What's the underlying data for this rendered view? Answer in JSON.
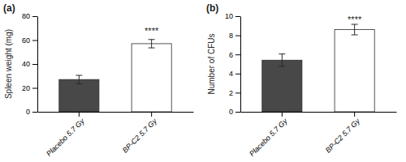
{
  "chart_data": [
    {
      "type": "bar",
      "title": "(a)",
      "categories": [
        "Placebo 5.7 Gy",
        "BP-C2 5.7 Gy"
      ],
      "values": [
        27.0,
        57.0
      ],
      "errors": [
        3.5,
        3.5
      ],
      "colors": [
        "#484848",
        "#ffffff"
      ],
      "ylabel": "Spleen weight (mg)",
      "ylim": [
        0,
        80
      ],
      "yticks": [
        0,
        20,
        40,
        60,
        80
      ],
      "grid": false,
      "annotations": [
        {
          "text": "****",
          "x": 1,
          "y": 65
        }
      ]
    },
    {
      "type": "bar",
      "title": "(b)",
      "categories": [
        "Placebo 5.7 Gy",
        "BP-C2 5.7 Gy"
      ],
      "values": [
        5.4,
        8.6
      ],
      "errors": [
        0.65,
        0.55
      ],
      "colors": [
        "#484848",
        "#ffffff"
      ],
      "ylabel": "Number of CFUs",
      "ylim": [
        0,
        10
      ],
      "yticks": [
        0,
        2,
        4,
        6,
        8,
        10
      ],
      "grid": false,
      "annotations": [
        {
          "text": "****",
          "x": 1,
          "y": 9.35
        }
      ]
    }
  ]
}
